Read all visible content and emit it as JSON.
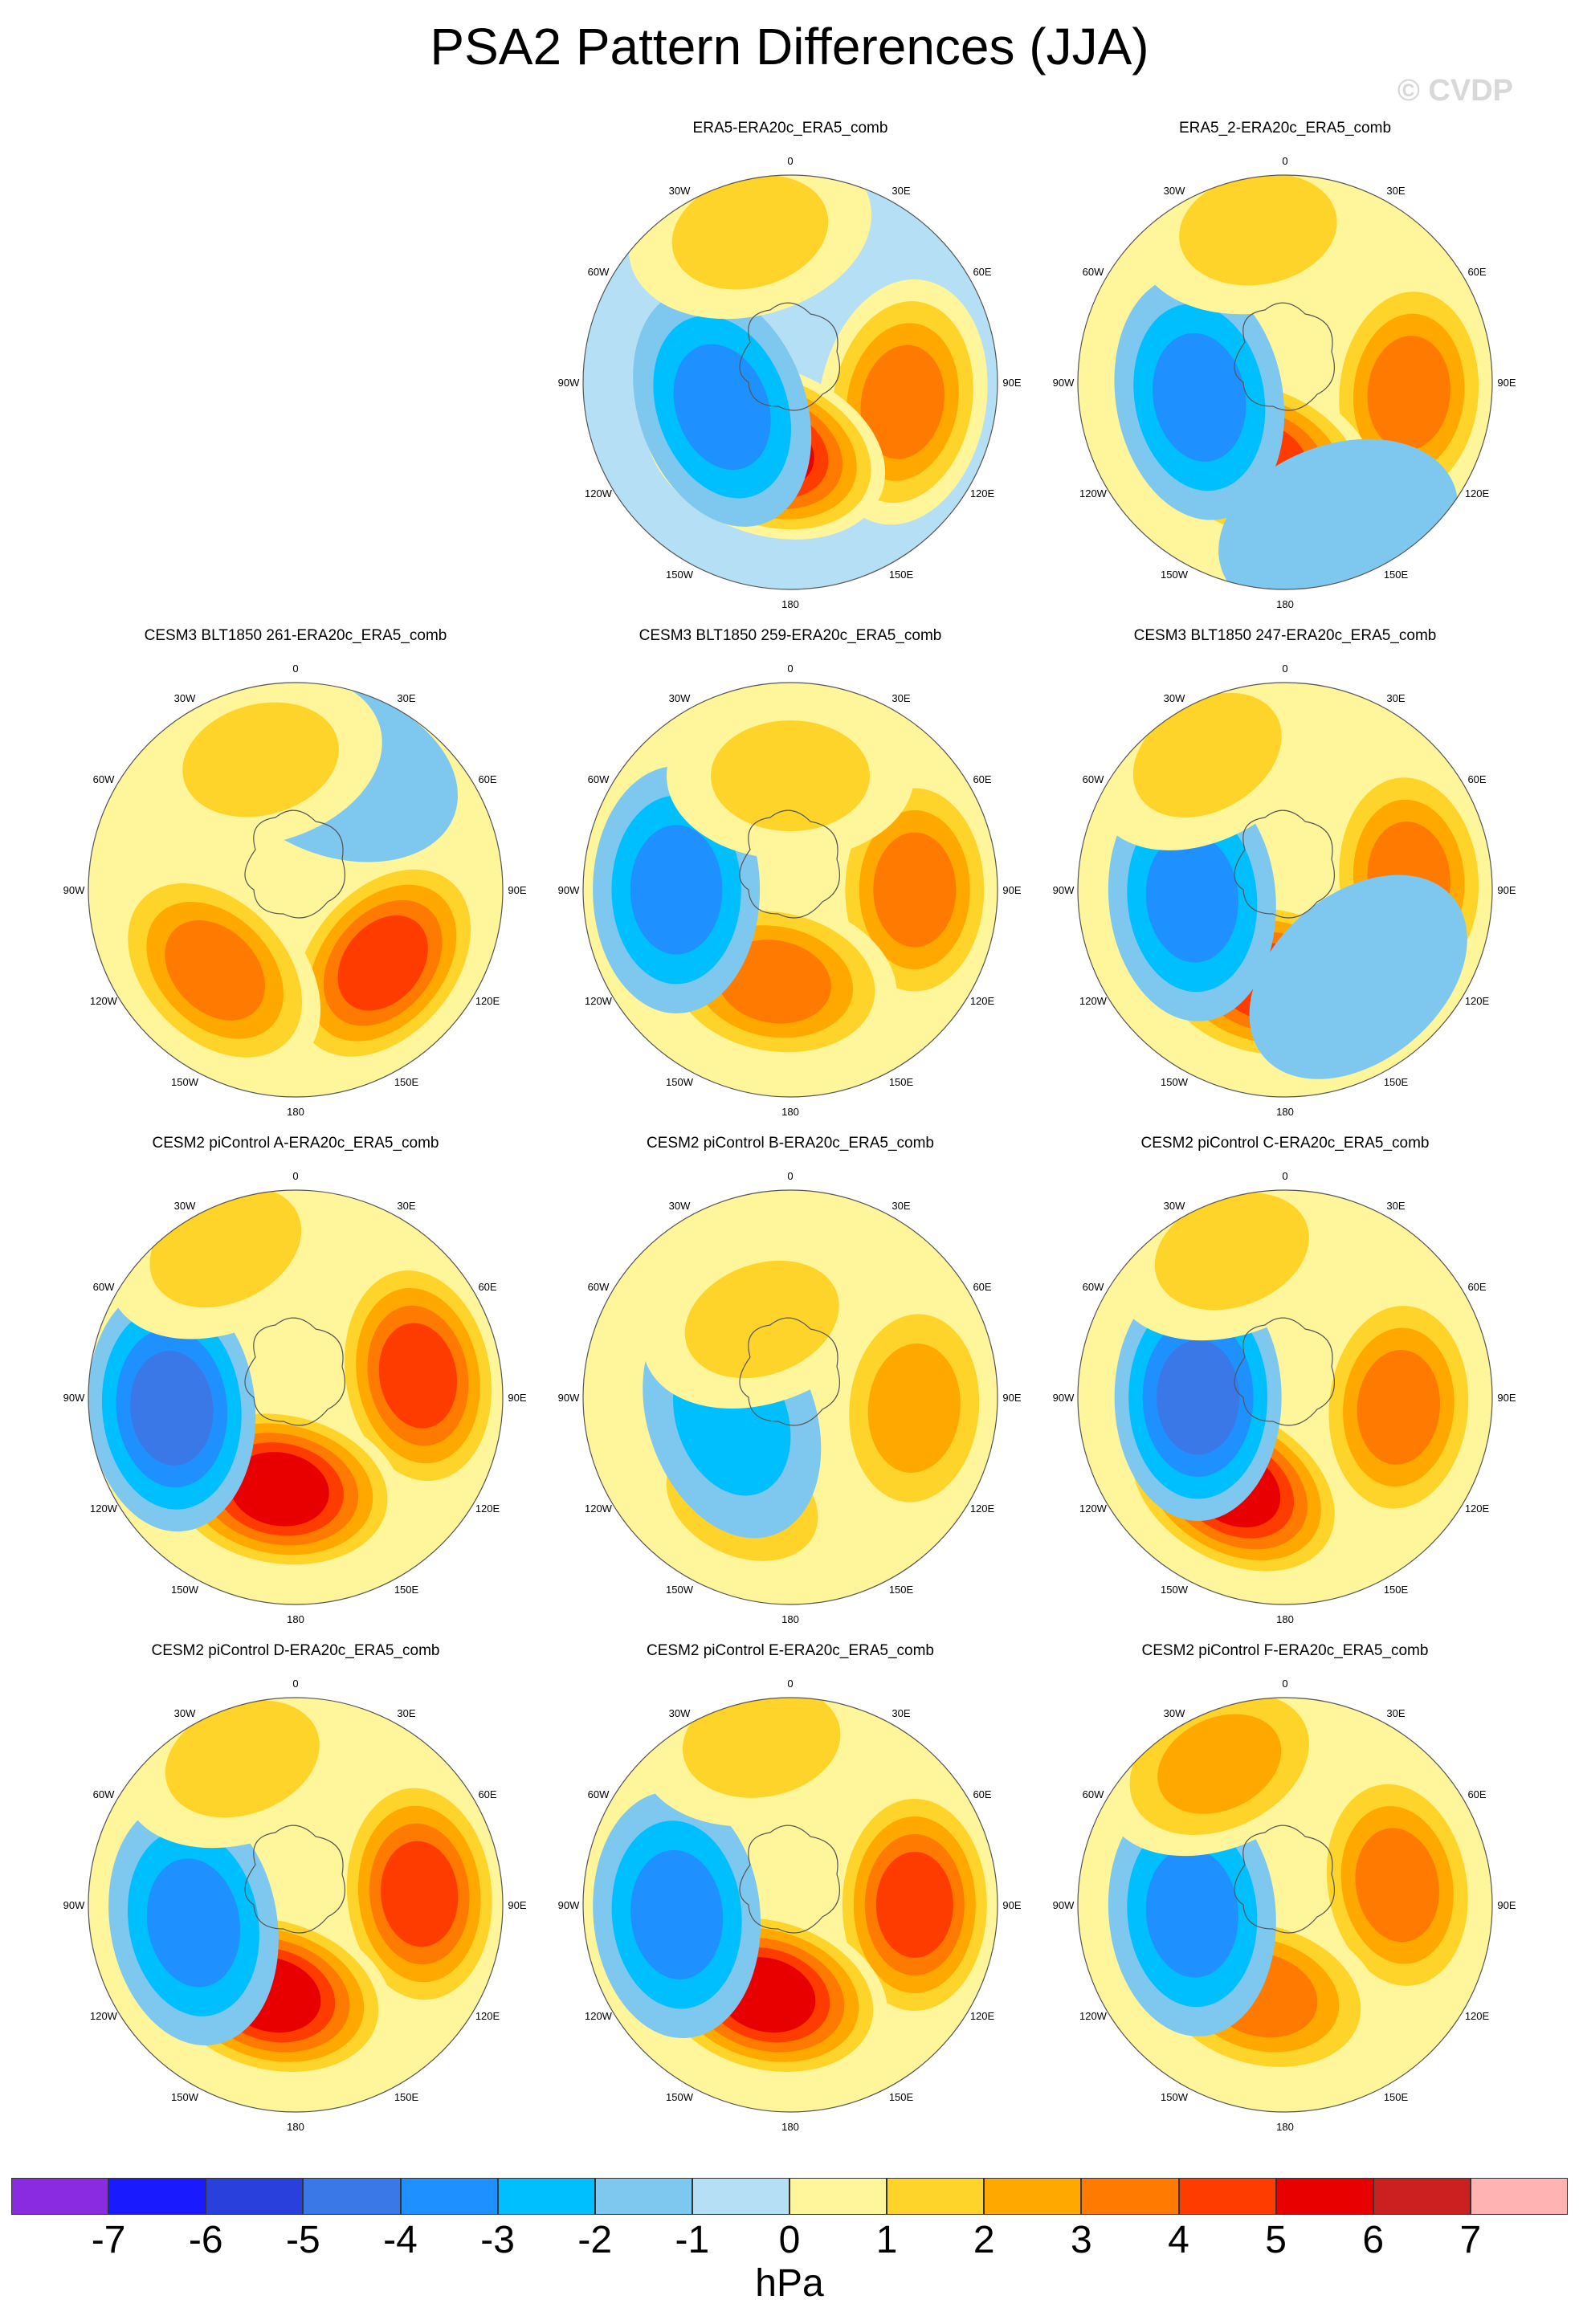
{
  "title": "PSA2 Pattern Differences (JJA)",
  "watermark": "© CVDP",
  "longitude_labels": [
    "0",
    "30E",
    "60E",
    "90E",
    "120E",
    "150E",
    "180",
    "150W",
    "120W",
    "90W",
    "60W",
    "30W"
  ],
  "panels": [
    {
      "title": "ERA5-ERA20c_ERA5_comb",
      "row": 0,
      "col": 1,
      "pattern": "era5"
    },
    {
      "title": "ERA5_2-ERA20c_ERA5_comb",
      "row": 0,
      "col": 2,
      "pattern": "era5_2"
    },
    {
      "title": "CESM3 BLT1850 261-ERA20c_ERA5_comb",
      "row": 1,
      "col": 0,
      "pattern": "b261"
    },
    {
      "title": "CESM3 BLT1850 259-ERA20c_ERA5_comb",
      "row": 1,
      "col": 1,
      "pattern": "b259"
    },
    {
      "title": "CESM3 BLT1850 247-ERA20c_ERA5_comb",
      "row": 1,
      "col": 2,
      "pattern": "b247"
    },
    {
      "title": "CESM2 piControl A-ERA20c_ERA5_comb",
      "row": 2,
      "col": 0,
      "pattern": "pa"
    },
    {
      "title": "CESM2 piControl B-ERA20c_ERA5_comb",
      "row": 2,
      "col": 1,
      "pattern": "pb"
    },
    {
      "title": "CESM2 piControl C-ERA20c_ERA5_comb",
      "row": 2,
      "col": 2,
      "pattern": "pc"
    },
    {
      "title": "CESM2 piControl D-ERA20c_ERA5_comb",
      "row": 3,
      "col": 0,
      "pattern": "pd"
    },
    {
      "title": "CESM2 piControl E-ERA20c_ERA5_comb",
      "row": 3,
      "col": 1,
      "pattern": "pe"
    },
    {
      "title": "CESM2 piControl F-ERA20c_ERA5_comb",
      "row": 3,
      "col": 2,
      "pattern": "pf"
    }
  ],
  "colorbar": {
    "colors": [
      "#8a2be2",
      "#1a1aff",
      "#2a40dd",
      "#3a78e8",
      "#1e90ff",
      "#00bfff",
      "#7ec8f0",
      "#b4dff5",
      "#fff59a",
      "#ffd42a",
      "#ffa800",
      "#ff7a00",
      "#ff3c00",
      "#e80000",
      "#cc1f1f",
      "#ffb3b3"
    ],
    "ticks": [
      "-7",
      "-6",
      "-5",
      "-4",
      "-3",
      "-2",
      "-1",
      "0",
      "1",
      "2",
      "3",
      "4",
      "5",
      "6",
      "7"
    ],
    "units": "hPa"
  },
  "contour_levels": {
    "-7": "#8a2be2",
    "-6": "#1a1aff",
    "-5": "#2a40dd",
    "-4": "#3a78e8",
    "-3": "#1e90ff",
    "-2": "#00bfff",
    "-1": "#7ec8f0",
    "0": "#b4dff5",
    "1": "#fff59a",
    "2": "#ffd42a",
    "3": "#ffa800",
    "4": "#ff7a00",
    "5": "#ff3c00",
    "6": "#e80000",
    "7": "#cc1f1f"
  },
  "patterns": {
    "era5": {
      "background": 0,
      "features": [
        {
          "lon": 100,
          "r": 0.55,
          "v": 4
        },
        {
          "lon": -160,
          "r": 0.35,
          "v": 6
        },
        {
          "lon": -110,
          "r": 0.35,
          "v": -3
        },
        {
          "lon": -15,
          "r": 0.75,
          "v": 2
        }
      ]
    },
    "era5_2": {
      "background": 1,
      "features": [
        {
          "lon": 95,
          "r": 0.6,
          "v": 4
        },
        {
          "lon": -160,
          "r": 0.4,
          "v": 5
        },
        {
          "lon": -100,
          "r": 0.42,
          "v": -3
        },
        {
          "lon": -10,
          "r": 0.75,
          "v": 2
        },
        {
          "lon": 160,
          "r": 0.75,
          "v": -1
        }
      ]
    },
    "b261": {
      "background": 1,
      "features": [
        {
          "lon": 130,
          "r": 0.55,
          "v": 5
        },
        {
          "lon": -135,
          "r": 0.55,
          "v": 4
        },
        {
          "lon": 20,
          "r": 0.6,
          "v": -1
        },
        {
          "lon": -15,
          "r": 0.65,
          "v": 2
        }
      ]
    },
    "b259": {
      "background": 1,
      "features": [
        {
          "lon": 90,
          "r": 0.6,
          "v": 4
        },
        {
          "lon": -170,
          "r": 0.45,
          "v": 4
        },
        {
          "lon": -90,
          "r": 0.55,
          "v": -3
        },
        {
          "lon": 0,
          "r": 0.55,
          "v": 2
        }
      ]
    },
    "b247": {
      "background": 1,
      "features": [
        {
          "lon": 85,
          "r": 0.6,
          "v": 4
        },
        {
          "lon": -170,
          "r": 0.45,
          "v": 5
        },
        {
          "lon": -95,
          "r": 0.45,
          "v": -3
        },
        {
          "lon": -30,
          "r": 0.75,
          "v": 2
        },
        {
          "lon": 140,
          "r": 0.55,
          "v": -1
        }
      ]
    },
    "pa": {
      "background": 1,
      "features": [
        {
          "lon": 80,
          "r": 0.6,
          "v": 5
        },
        {
          "lon": -170,
          "r": 0.45,
          "v": 6
        },
        {
          "lon": -95,
          "r": 0.6,
          "v": -4
        },
        {
          "lon": -25,
          "r": 0.8,
          "v": 2
        }
      ]
    },
    "pb": {
      "background": 1,
      "features": [
        {
          "lon": 95,
          "r": 0.6,
          "v": 3
        },
        {
          "lon": -155,
          "r": 0.55,
          "v": 2
        },
        {
          "lon": -110,
          "r": 0.3,
          "v": -2
        },
        {
          "lon": -20,
          "r": 0.4,
          "v": 2
        }
      ]
    },
    "pc": {
      "background": 1,
      "features": [
        {
          "lon": 95,
          "r": 0.55,
          "v": 4
        },
        {
          "lon": -150,
          "r": 0.5,
          "v": 6
        },
        {
          "lon": -90,
          "r": 0.42,
          "v": -4
        },
        {
          "lon": -20,
          "r": 0.75,
          "v": 2
        }
      ]
    },
    "pd": {
      "background": 1,
      "features": [
        {
          "lon": 85,
          "r": 0.6,
          "v": 5
        },
        {
          "lon": -165,
          "r": 0.45,
          "v": 6
        },
        {
          "lon": -100,
          "r": 0.5,
          "v": -3
        },
        {
          "lon": -20,
          "r": 0.75,
          "v": 2
        }
      ]
    },
    "pe": {
      "background": 1,
      "features": [
        {
          "lon": 90,
          "r": 0.6,
          "v": 5
        },
        {
          "lon": -165,
          "r": 0.45,
          "v": 6
        },
        {
          "lon": -95,
          "r": 0.55,
          "v": -3
        },
        {
          "lon": -10,
          "r": 0.8,
          "v": 2
        }
      ]
    },
    "pf": {
      "background": 1,
      "features": [
        {
          "lon": 80,
          "r": 0.55,
          "v": 4
        },
        {
          "lon": -165,
          "r": 0.45,
          "v": 4
        },
        {
          "lon": -95,
          "r": 0.45,
          "v": -3
        },
        {
          "lon": -25,
          "r": 0.75,
          "v": 3
        }
      ]
    }
  }
}
